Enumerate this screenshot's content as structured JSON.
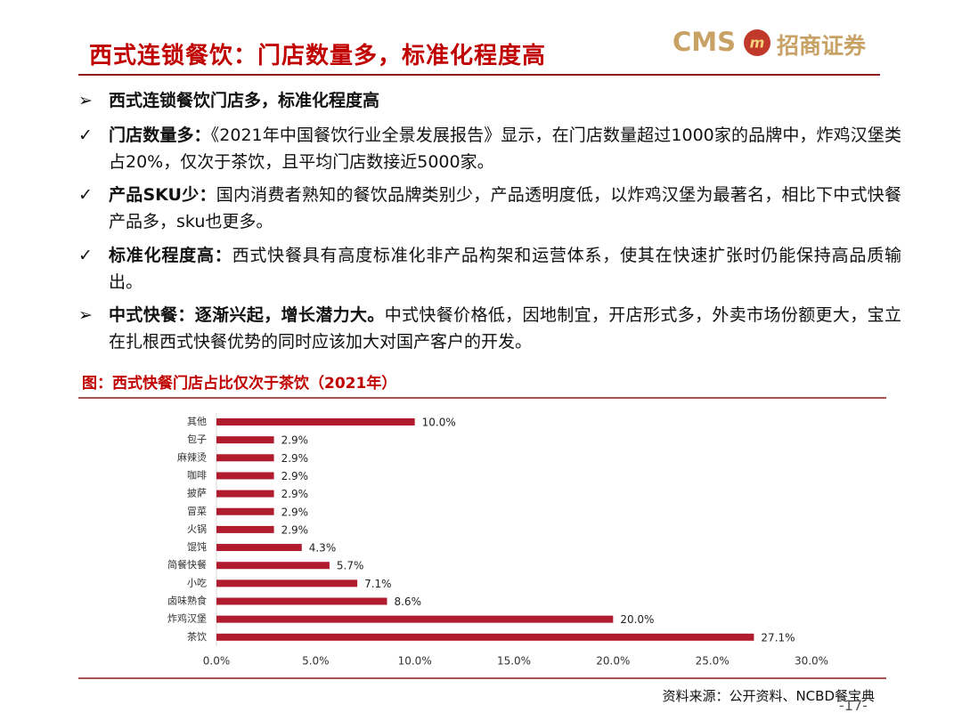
{
  "header": {
    "title": "西式连锁餐饮：门店数量多，标准化程度高",
    "logo_text": "CMS",
    "logo_name": "招商证券"
  },
  "bullets": [
    {
      "lead": "西式连锁餐饮门店多，标准化程度高",
      "text": ""
    },
    {
      "lead": "门店数量多：",
      "text": "《2021年中国餐饮行业全景发展报告》显示，在门店数量超过1000家的品牌中，炸鸡汉堡类占20%，仅次于茶饮，且平均门店数接近5000家。"
    },
    {
      "lead": "产品SKU少：",
      "text": "国内消费者熟知的餐饮品牌类别少，产品透明度低，以炸鸡汉堡为最著名，相比下中式快餐产品多，sku也更多。"
    },
    {
      "lead": "标准化程度高：",
      "text": "西式快餐具有高度标准化非产品构架和运营体系，使其在快速扩张时仍能保持高品质输出。"
    },
    {
      "lead": "中式快餐：逐渐兴起，增长潜力大。",
      "text": "中式快餐价格低，因地制宜，开店形式多，外卖市场份额更大，宝立在扎根西式快餐优势的同时应该加大对国产客户的开发。"
    }
  ],
  "figure_caption": "图：西式快餐门店占比仅次于茶饮（2021年）",
  "source": "资料来源：公开资料、NCBD餐宝典",
  "page_number": "-17-",
  "chart_data": {
    "type": "bar",
    "orientation": "horizontal",
    "color": "#b01c2e",
    "categories": [
      "其他",
      "包子",
      "麻辣烫",
      "咖啡",
      "披萨",
      "冒菜",
      "火锅",
      "馄饨",
      "简餐快餐",
      "小吃",
      "卤味熟食",
      "炸鸡汉堡",
      "茶饮"
    ],
    "values": [
      10.0,
      2.9,
      2.9,
      2.9,
      2.9,
      2.9,
      2.9,
      4.3,
      5.7,
      7.1,
      8.6,
      20.0,
      27.1
    ],
    "value_labels": [
      "10.0%",
      "2.9%",
      "2.9%",
      "2.9%",
      "2.9%",
      "2.9%",
      "2.9%",
      "4.3%",
      "5.7%",
      "7.1%",
      "8.6%",
      "20.0%",
      "27.1%"
    ],
    "xlim": [
      0,
      30
    ],
    "xticks": [
      {
        "value": 0,
        "label": "0.0%"
      },
      {
        "value": 5,
        "label": "5.0%"
      },
      {
        "value": 10,
        "label": "10.0%"
      },
      {
        "value": 15,
        "label": "15.0%"
      },
      {
        "value": 20,
        "label": "20.0%"
      },
      {
        "value": 25,
        "label": "25.0%"
      },
      {
        "value": 30,
        "label": "30.0%"
      }
    ]
  }
}
